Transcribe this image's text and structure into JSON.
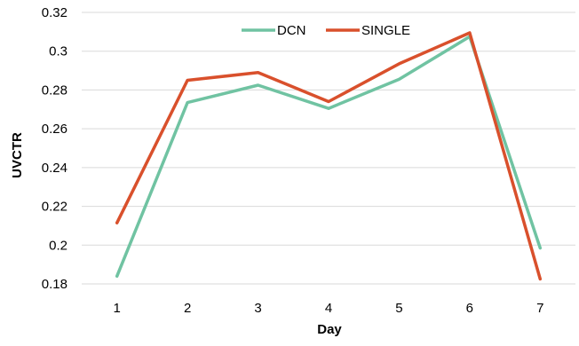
{
  "chart_data": {
    "type": "line",
    "title": "",
    "xlabel": "Day",
    "ylabel": "UVCTR",
    "categories": [
      "1",
      "2",
      "3",
      "4",
      "5",
      "6",
      "7"
    ],
    "ylim": [
      0.18,
      0.32
    ],
    "yticks": [
      "0.18",
      "0.2",
      "0.22",
      "0.24",
      "0.26",
      "0.28",
      "0.3",
      "0.32"
    ],
    "ytick_values": [
      0.18,
      0.2,
      0.22,
      0.24,
      0.26,
      0.28,
      0.3,
      0.32
    ],
    "grid": true,
    "legend_position": "top",
    "series": [
      {
        "name": "DCN",
        "color": "#70C3A2",
        "values": [
          0.184,
          0.2735,
          0.2825,
          0.2705,
          0.2855,
          0.3075,
          0.1985
        ]
      },
      {
        "name": "SINGLE",
        "color": "#D9502C",
        "values": [
          0.2115,
          0.285,
          0.289,
          0.274,
          0.2935,
          0.3095,
          0.1825
        ]
      }
    ]
  }
}
